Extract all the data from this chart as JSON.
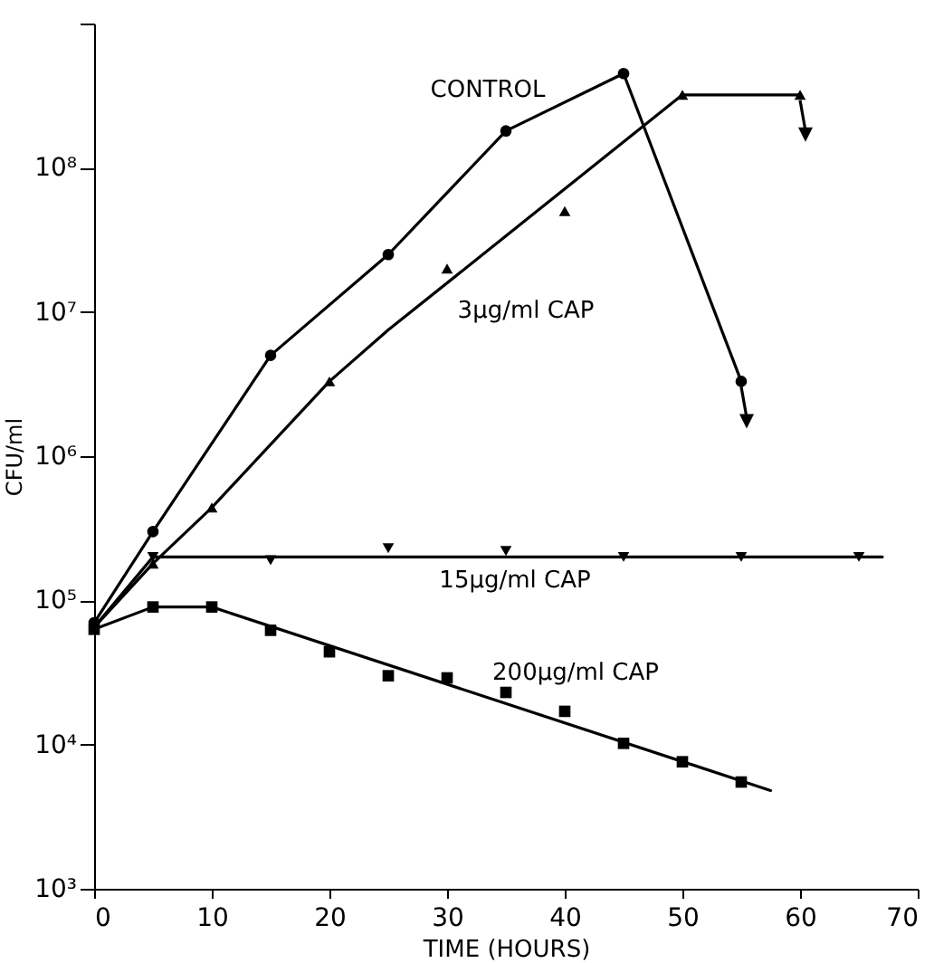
{
  "chart_data": {
    "type": "line",
    "xlabel": "TIME (HOURS)",
    "ylabel": "CFU/ml",
    "log": "y",
    "xlim": [
      0,
      70
    ],
    "xticks": [
      0,
      10,
      20,
      30,
      40,
      50,
      60,
      70
    ],
    "ylim": [
      1000,
      1000000000
    ],
    "yticks": [
      {
        "value": 1000,
        "label": "10³"
      },
      {
        "value": 10000,
        "label": "10⁴"
      },
      {
        "value": 100000,
        "label": "10⁵"
      },
      {
        "value": 1000000,
        "label": "10⁶"
      },
      {
        "value": 10000000,
        "label": "10⁷"
      },
      {
        "value": 100000000,
        "label": "10⁸"
      },
      {
        "value": 1000000000,
        "label": null
      }
    ],
    "grid": false,
    "line_style": "solid",
    "series": [
      {
        "name": "CONTROL",
        "color": "#000000",
        "marker": "none",
        "x": [
          0,
          5,
          15,
          25,
          35,
          45,
          55
        ],
        "values": [
          70000,
          300000,
          5000000,
          25000000,
          180000000,
          450000000,
          3300000
        ]
      },
      {
        "type": "scatter",
        "color": "#000000",
        "marker": "circle",
        "x": [
          0,
          5,
          15,
          25,
          35,
          45,
          55
        ],
        "values": [
          70000,
          300000,
          5000000,
          25000000,
          180000000,
          450000000,
          3300000
        ]
      },
      {
        "name": "3µg/ml CAP",
        "color": "#000000",
        "marker": "none",
        "x": [
          0,
          5,
          10,
          20,
          25,
          50,
          60
        ],
        "values": [
          65000,
          180000,
          440000,
          3300000,
          7500000,
          320000000,
          320000000
        ]
      },
      {
        "type": "scatter",
        "color": "#000000",
        "marker": "triangle",
        "x": [
          5,
          10,
          20,
          30,
          40,
          50,
          60
        ],
        "values": [
          180000,
          440000,
          3300000,
          20000000,
          50000000,
          320000000,
          320000000
        ]
      },
      {
        "name": "15µg/ml CAP",
        "color": "#000000",
        "marker": "none",
        "x": [
          0,
          5,
          67
        ],
        "values": [
          65000,
          200000,
          200000
        ]
      },
      {
        "type": "scatter",
        "color": "#000000",
        "marker": "triangle-down",
        "x": [
          5,
          15,
          25,
          35,
          45,
          55,
          65
        ],
        "values": [
          200000,
          190000,
          230000,
          220000,
          200000,
          200000,
          200000
        ]
      },
      {
        "name": "200µg/ml CAP",
        "color": "#000000",
        "marker": "none",
        "x": [
          0,
          5,
          10,
          57.5
        ],
        "values": [
          63000,
          90000,
          90000,
          4800
        ]
      },
      {
        "type": "scatter",
        "color": "#000000",
        "marker": "square",
        "x": [
          0,
          5,
          10,
          15,
          20,
          25,
          30,
          35,
          40,
          45,
          50,
          55
        ],
        "values": [
          63000,
          90000,
          90000,
          62000,
          44000,
          30000,
          29000,
          23000,
          17000,
          10200,
          7600,
          5500
        ]
      }
    ]
  }
}
